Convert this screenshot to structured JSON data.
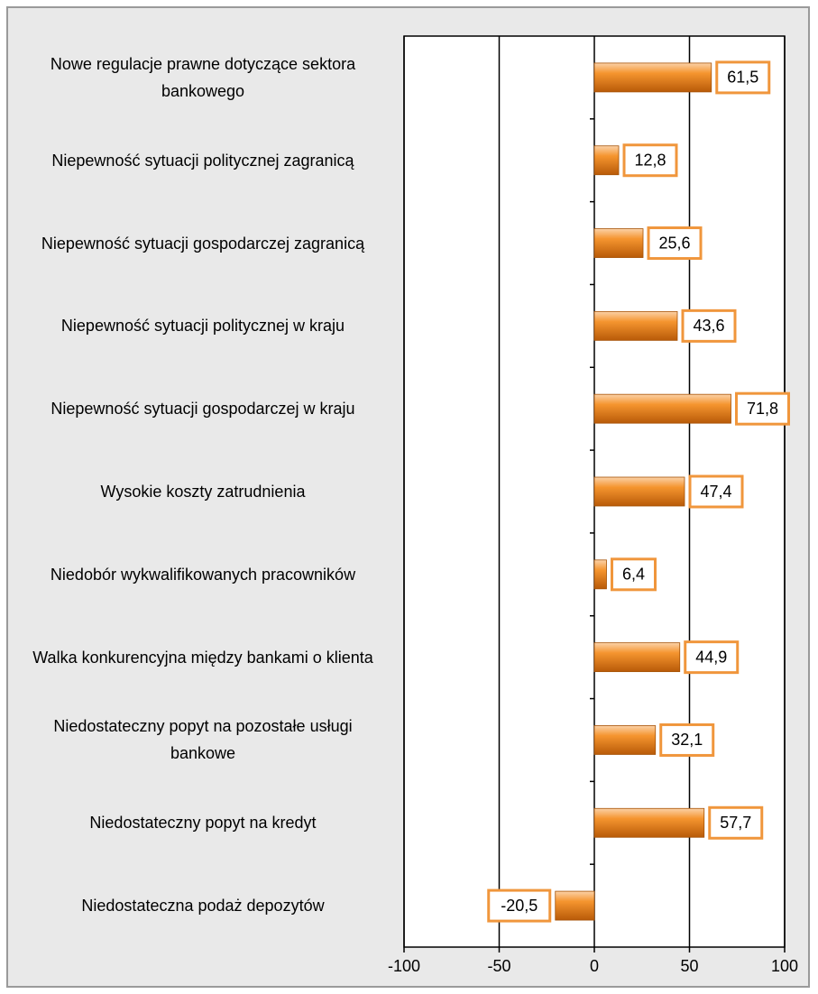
{
  "chart_data": {
    "type": "bar",
    "orientation": "horizontal",
    "categories": [
      "Nowe regulacje prawne dotyczące sektora bankowego",
      "Niepewność sytuacji politycznej zagranicą",
      "Niepewność sytuacji gospodarczej zagranicą",
      "Niepewność sytuacji politycznej w kraju",
      "Niepewność sytuacji gospodarczej w kraju",
      "Wysokie koszty zatrudnienia",
      "Niedobór wykwalifikowanych pracowników",
      "Walka konkurencyjna między bankami o klienta",
      "Niedostateczny popyt na pozostałe usługi bankowe",
      "Niedostateczny popyt na kredyt",
      "Niedostateczna podaż depozytów"
    ],
    "values": [
      61.5,
      12.8,
      25.6,
      43.6,
      71.8,
      47.4,
      6.4,
      44.9,
      32.1,
      57.7,
      -20.5
    ],
    "value_labels": [
      "61,5",
      "12,8",
      "25,6",
      "43,6",
      "71,8",
      "47,4",
      "6,4",
      "44,9",
      "32,1",
      "57,7",
      "-20,5"
    ],
    "color": "#f0811e",
    "xlim": [
      -100,
      100
    ],
    "xticks": [
      -100,
      -50,
      0,
      50,
      100
    ],
    "grid": true
  }
}
